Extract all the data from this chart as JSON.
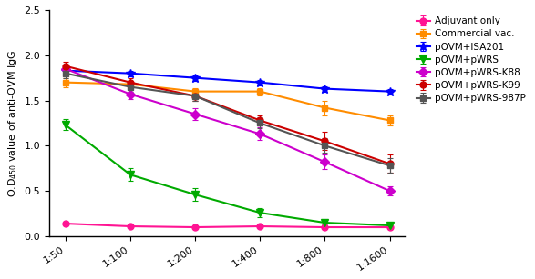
{
  "x_labels": [
    "1:50",
    "1:100",
    "1:200",
    "1:400",
    "1:800",
    "1:1600"
  ],
  "x_values": [
    0,
    1,
    2,
    3,
    4,
    5
  ],
  "series": [
    {
      "label": "Adjuvant only",
      "color": "#FF1493",
      "marker": "o",
      "linestyle": "-",
      "linewidth": 1.5,
      "markersize": 5,
      "values": [
        0.14,
        0.11,
        0.1,
        0.11,
        0.1,
        0.1
      ],
      "errors": [
        0.01,
        0.01,
        0.01,
        0.01,
        0.01,
        0.01
      ]
    },
    {
      "label": "Commercial vac.",
      "color": "#FF8C00",
      "marker": "s",
      "linestyle": "-",
      "linewidth": 1.5,
      "markersize": 5,
      "values": [
        1.7,
        1.68,
        1.6,
        1.6,
        1.42,
        1.28
      ],
      "errors": [
        0.05,
        0.04,
        0.04,
        0.04,
        0.08,
        0.06
      ]
    },
    {
      "label": "pOVM+ISA201",
      "color": "#0000FF",
      "marker": "*",
      "linestyle": "-",
      "linewidth": 1.5,
      "markersize": 7,
      "values": [
        1.83,
        1.8,
        1.75,
        1.7,
        1.63,
        1.6
      ],
      "errors": [
        0.04,
        0.03,
        0.03,
        0.03,
        0.03,
        0.03
      ]
    },
    {
      "label": "pOVM+pWRS",
      "color": "#00AA00",
      "marker": "v",
      "linestyle": "-",
      "linewidth": 1.5,
      "markersize": 6,
      "values": [
        1.23,
        0.68,
        0.46,
        0.26,
        0.15,
        0.12
      ],
      "errors": [
        0.06,
        0.07,
        0.07,
        0.05,
        0.02,
        0.02
      ]
    },
    {
      "label": "pOVM+pWRS-K88",
      "color": "#CC00CC",
      "marker": "D",
      "linestyle": "-",
      "linewidth": 1.5,
      "markersize": 5,
      "values": [
        1.85,
        1.57,
        1.35,
        1.13,
        0.82,
        0.5
      ],
      "errors": [
        0.05,
        0.05,
        0.07,
        0.07,
        0.08,
        0.05
      ]
    },
    {
      "label": "pOVM+pWRS-K99",
      "color": "#CC0000",
      "marker": "o",
      "linestyle": "-",
      "linewidth": 1.5,
      "markersize": 5,
      "values": [
        1.88,
        1.7,
        1.55,
        1.28,
        1.05,
        0.8
      ],
      "errors": [
        0.05,
        0.05,
        0.05,
        0.06,
        0.1,
        0.1
      ]
    },
    {
      "label": "pOVM+pWRS-987P",
      "color": "#555555",
      "marker": "s",
      "linestyle": "-",
      "linewidth": 1.5,
      "markersize": 5,
      "values": [
        1.8,
        1.65,
        1.55,
        1.25,
        1.0,
        0.78
      ],
      "errors": [
        0.05,
        0.05,
        0.05,
        0.06,
        0.08,
        0.08
      ]
    }
  ],
  "ylabel": "O.D$_{450}$ value of anti-OVM IgG",
  "ylim": [
    0,
    2.5
  ],
  "yticks": [
    0.0,
    0.5,
    1.0,
    1.5,
    2.0,
    2.5
  ],
  "background_color": "#ffffff",
  "legend_fontsize": 7.5,
  "axis_fontsize": 8
}
